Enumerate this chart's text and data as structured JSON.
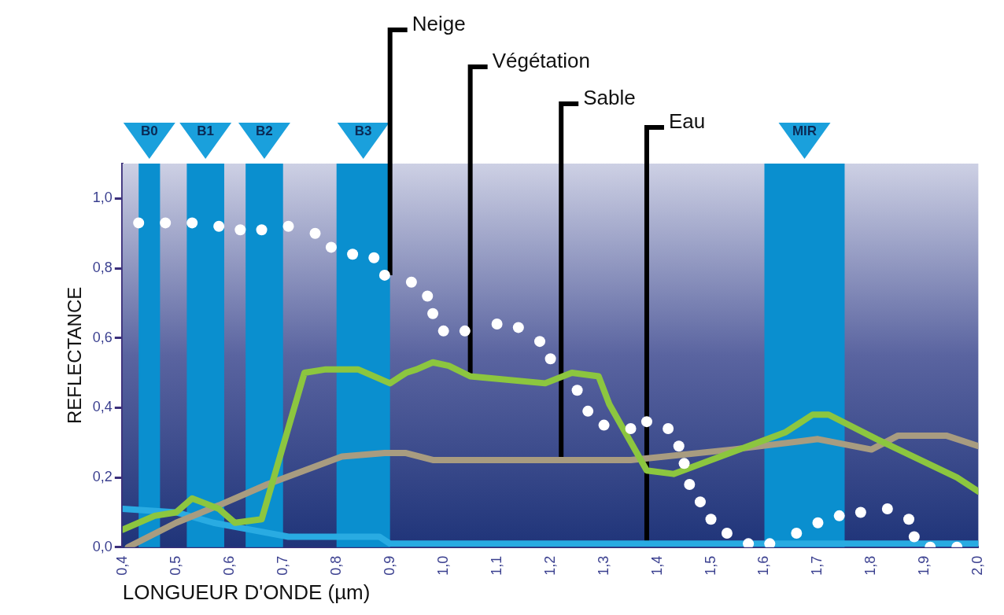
{
  "chart_data": {
    "type": "line",
    "xlabel": "LONGUEUR D'ONDE (µm)",
    "ylabel": "REFLECTANCE",
    "xlim": [
      0.4,
      2.0
    ],
    "xticks": [
      {
        "value": 0.4,
        "label": "0,4"
      },
      {
        "value": 0.5,
        "label": "0,5"
      },
      {
        "value": 0.6,
        "label": "0,6"
      },
      {
        "value": 0.7,
        "label": "0,7"
      },
      {
        "value": 0.8,
        "label": "0,8"
      },
      {
        "value": 0.9,
        "label": "0,9"
      },
      {
        "value": 1.0,
        "label": "1,0"
      },
      {
        "value": 1.1,
        "label": "1,1"
      },
      {
        "value": 1.2,
        "label": "1,2"
      },
      {
        "value": 1.3,
        "label": "1,3"
      },
      {
        "value": 1.4,
        "label": "1,4"
      },
      {
        "value": 1.5,
        "label": "1,5"
      },
      {
        "value": 1.6,
        "label": "1,6"
      },
      {
        "value": 1.7,
        "label": "1,7"
      },
      {
        "value": 1.8,
        "label": "1,8"
      },
      {
        "value": 1.9,
        "label": "1,9"
      },
      {
        "value": 2.0,
        "label": "2,0"
      }
    ],
    "ylim": [
      0,
      1.1
    ],
    "yticks": [
      {
        "value": 0,
        "label": "0,0"
      },
      {
        "value": 0.2,
        "label": "0,2"
      },
      {
        "value": 0.4,
        "label": "0,4"
      },
      {
        "value": 0.6,
        "label": "0,6"
      },
      {
        "value": 0.8,
        "label": "0,8"
      },
      {
        "value": 1.0,
        "label": "1,0"
      }
    ],
    "bands": [
      {
        "axis": "x",
        "from": 0.43,
        "to": 0.47,
        "label": "B0",
        "color": "#0a8fcf"
      },
      {
        "axis": "x",
        "from": 0.52,
        "to": 0.59,
        "label": "B1",
        "color": "#0a8fcf"
      },
      {
        "axis": "x",
        "from": 0.63,
        "to": 0.7,
        "label": "B2",
        "color": "#0a8fcf"
      },
      {
        "axis": "x",
        "from": 0.8,
        "to": 0.9,
        "label": "B3",
        "color": "#0a8fcf"
      },
      {
        "axis": "x",
        "from": 1.6,
        "to": 1.75,
        "label": "MIR",
        "color": "#0a8fcf"
      }
    ],
    "series": [
      {
        "type": "scatter",
        "marker": "circle",
        "color": "#ffffff",
        "x": [
          0.43,
          0.48,
          0.53,
          0.58,
          0.62,
          0.66,
          0.71,
          0.76,
          0.79,
          0.83,
          0.87,
          0.89,
          0.94,
          0.97,
          0.98,
          1.0,
          1.04,
          1.1,
          1.14,
          1.18,
          1.2,
          1.25,
          1.27,
          1.3,
          1.35,
          1.38,
          1.42,
          1.44,
          1.45,
          1.46,
          1.48,
          1.5,
          1.53,
          1.57,
          1.61,
          1.66,
          1.7,
          1.74,
          1.78,
          1.83,
          1.87,
          1.88,
          1.91,
          1.96
        ],
        "values": [
          0.93,
          0.93,
          0.93,
          0.92,
          0.91,
          0.91,
          0.92,
          0.9,
          0.86,
          0.84,
          0.83,
          0.78,
          0.76,
          0.72,
          0.67,
          0.62,
          0.62,
          0.64,
          0.63,
          0.59,
          0.54,
          0.45,
          0.39,
          0.35,
          0.34,
          0.36,
          0.34,
          0.29,
          0.24,
          0.18,
          0.13,
          0.08,
          0.04,
          0.01,
          0.01,
          0.04,
          0.07,
          0.09,
          0.1,
          0.11,
          0.08,
          0.03,
          0.0,
          0.0
        ]
      },
      {
        "type": "line",
        "color": "#8cc63f",
        "x": [
          0.4,
          0.46,
          0.5,
          0.53,
          0.58,
          0.61,
          0.66,
          0.74,
          0.78,
          0.84,
          0.9,
          0.93,
          0.95,
          0.98,
          1.01,
          1.05,
          1.19,
          1.24,
          1.29,
          1.31,
          1.38,
          1.43,
          1.64,
          1.69,
          1.72,
          1.81,
          1.96,
          2.0
        ],
        "values": [
          0.05,
          0.09,
          0.1,
          0.14,
          0.11,
          0.07,
          0.08,
          0.5,
          0.51,
          0.51,
          0.47,
          0.5,
          0.51,
          0.53,
          0.52,
          0.49,
          0.47,
          0.5,
          0.49,
          0.41,
          0.22,
          0.21,
          0.33,
          0.38,
          0.38,
          0.31,
          0.2,
          0.16
        ]
      },
      {
        "type": "line",
        "color": "#a89c80",
        "x": [
          0.41,
          0.5,
          0.58,
          0.67,
          0.74,
          0.81,
          0.89,
          0.93,
          0.98,
          1.08,
          1.22,
          1.35,
          1.54,
          1.7,
          1.8,
          1.85,
          1.94,
          2.0
        ],
        "values": [
          0.0,
          0.07,
          0.12,
          0.18,
          0.22,
          0.26,
          0.27,
          0.27,
          0.25,
          0.25,
          0.25,
          0.25,
          0.28,
          0.31,
          0.28,
          0.32,
          0.32,
          0.29
        ]
      },
      {
        "type": "line",
        "color": "#29abe2",
        "x": [
          0.4,
          0.5,
          0.57,
          0.64,
          0.71,
          0.88,
          0.9,
          1.0,
          1.2,
          1.4,
          1.6,
          1.8,
          2.0
        ],
        "values": [
          0.11,
          0.1,
          0.07,
          0.05,
          0.03,
          0.03,
          0.01,
          0.01,
          0.01,
          0.01,
          0.01,
          0.01,
          0.01
        ]
      }
    ],
    "annotations": [
      {
        "text": "Neige",
        "x": 0.9,
        "y": 0.78
      },
      {
        "text": "Végétation",
        "x": 1.05,
        "y": 0.49
      },
      {
        "text": "Sable",
        "x": 1.22,
        "y": 0.25
      },
      {
        "text": "Eau",
        "x": 1.38,
        "y": 0.01
      }
    ]
  }
}
